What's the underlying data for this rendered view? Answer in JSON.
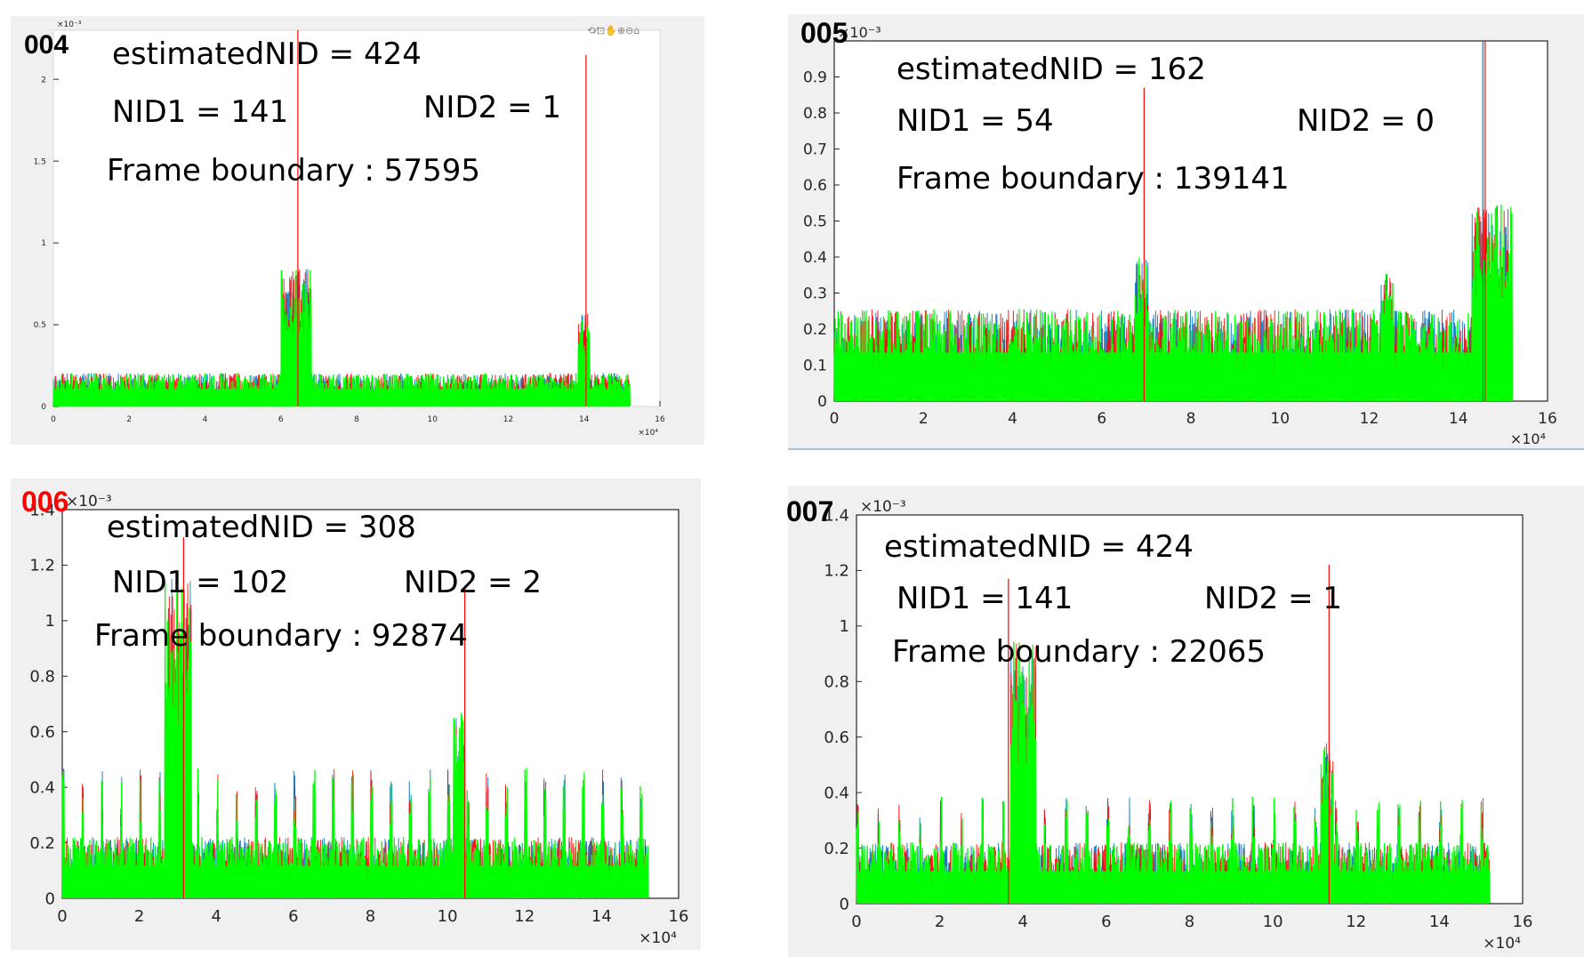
{
  "panels": [
    {
      "id": "004",
      "id_color": "#000000",
      "annotations": {
        "estimated": "estimatedNID  =  424",
        "nid1": "NID1  =  141",
        "nid2": "NID2  =  1",
        "frame": "Frame boundary : 57595"
      },
      "chart_data": {
        "type": "line",
        "x_range": [
          0,
          160000
        ],
        "y_range": [
          0,
          0.0023
        ],
        "x_ticks": [
          "0",
          "2",
          "4",
          "6",
          "8",
          "10",
          "12",
          "14",
          "16"
        ],
        "y_ticks": [
          "0",
          "0.5",
          "1",
          "1.5",
          "2"
        ],
        "x_exponent": "×10⁴",
        "y_exponent": "×10⁻³",
        "data_end": 152000,
        "baseline": 0.00012,
        "series": [
          {
            "color": "#0072BD"
          },
          {
            "color": "#FF0000"
          },
          {
            "color": "#00FF00"
          }
        ],
        "clusters": [
          {
            "x": 64000,
            "height": 0.0008,
            "width": 4000
          },
          {
            "x": 140000,
            "height": 0.00055,
            "width": 1500
          }
        ],
        "spikes": [
          {
            "x": 64500,
            "y": 0.0023,
            "color": "#FF0000"
          },
          {
            "x": 140500,
            "y": 0.00215,
            "color": "#FF0000"
          }
        ]
      }
    },
    {
      "id": "005",
      "id_color": "#000000",
      "annotations": {
        "estimated": "estimatedNID  =  162",
        "nid1": "NID1  =  54",
        "nid2": "NID2  =  0",
        "frame": "Frame boundary : 139141"
      },
      "chart_data": {
        "type": "line",
        "x_range": [
          0,
          160000
        ],
        "y_range": [
          0,
          0.001
        ],
        "x_ticks": [
          "0",
          "2",
          "4",
          "6",
          "8",
          "10",
          "12",
          "14",
          "16"
        ],
        "y_ticks": [
          "0",
          "0.1",
          "0.2",
          "0.3",
          "0.4",
          "0.5",
          "0.6",
          "0.7",
          "0.8",
          "0.9"
        ],
        "x_exponent": "×10⁴",
        "y_exponent": "×10⁻³",
        "data_end": 152000,
        "baseline": 0.00015,
        "series": [
          {
            "color": "#0072BD"
          },
          {
            "color": "#FF0000"
          },
          {
            "color": "#00FF00"
          }
        ],
        "clusters": [
          {
            "x": 69000,
            "height": 0.00038,
            "width": 1500
          },
          {
            "x": 124000,
            "height": 0.00035,
            "width": 1500
          },
          {
            "x": 148000,
            "height": 0.00052,
            "width": 5000
          }
        ],
        "spikes": [
          {
            "x": 69500,
            "y": 0.00087,
            "color": "#FF0000"
          },
          {
            "x": 146000,
            "y": 0.001,
            "color": "#FF0000"
          },
          {
            "x": 145500,
            "y": 0.001,
            "color": "#0072BD"
          }
        ]
      }
    },
    {
      "id": "006",
      "id_color": "#FF0000",
      "annotations": {
        "estimated": "estimatedNID  =  308",
        "nid1": "NID1  =  102",
        "nid2": "NID2  =  2",
        "frame": "Frame boundary : 92874"
      },
      "chart_data": {
        "type": "line",
        "x_range": [
          0,
          160000
        ],
        "y_range": [
          0,
          0.0014
        ],
        "x_ticks": [
          "0",
          "2",
          "4",
          "6",
          "8",
          "10",
          "12",
          "14",
          "16"
        ],
        "y_ticks": [
          "0",
          "0.2",
          "0.4",
          "0.6",
          "0.8",
          "1",
          "1.2",
          "1.4"
        ],
        "x_exponent": "×10⁴",
        "y_exponent": "×10⁻³",
        "data_end": 152000,
        "baseline": 0.00013,
        "periodic_peaks": 0.00043,
        "series": [
          {
            "color": "#0072BD"
          },
          {
            "color": "#FF0000"
          },
          {
            "color": "#00FF00"
          }
        ],
        "clusters": [
          {
            "x": 30000,
            "height": 0.0011,
            "width": 3500
          },
          {
            "x": 103000,
            "height": 0.00065,
            "width": 1500
          }
        ],
        "spikes": [
          {
            "x": 31500,
            "y": 0.0013,
            "color": "#FF0000"
          },
          {
            "x": 104500,
            "y": 0.00112,
            "color": "#FF0000"
          }
        ]
      }
    },
    {
      "id": "007",
      "id_color": "#000000",
      "annotations": {
        "estimated": "estimatedNID  =  424",
        "nid1": "NID1  =  141",
        "nid2": "NID2  =  1",
        "frame": "Frame boundary : 22065"
      },
      "chart_data": {
        "type": "line",
        "x_range": [
          0,
          160000
        ],
        "y_range": [
          0,
          0.0014
        ],
        "x_ticks": [
          "0",
          "2",
          "4",
          "6",
          "8",
          "10",
          "12",
          "14",
          "16"
        ],
        "y_ticks": [
          "0",
          "0.2",
          "0.4",
          "0.6",
          "0.8",
          "1",
          "1.2",
          "1.4"
        ],
        "x_exponent": "×10⁴",
        "y_exponent": "×10⁻³",
        "data_end": 152000,
        "baseline": 0.00013,
        "periodic_peaks": 0.00035,
        "series": [
          {
            "color": "#0072BD"
          },
          {
            "color": "#FF0000"
          },
          {
            "color": "#00FF00"
          }
        ],
        "clusters": [
          {
            "x": 40000,
            "height": 0.0009,
            "width": 3000
          },
          {
            "x": 113000,
            "height": 0.00055,
            "width": 1500
          }
        ],
        "spikes": [
          {
            "x": 36500,
            "y": 0.00117,
            "color": "#FF0000"
          },
          {
            "x": 113500,
            "y": 0.00122,
            "color": "#FF0000"
          }
        ]
      }
    }
  ]
}
